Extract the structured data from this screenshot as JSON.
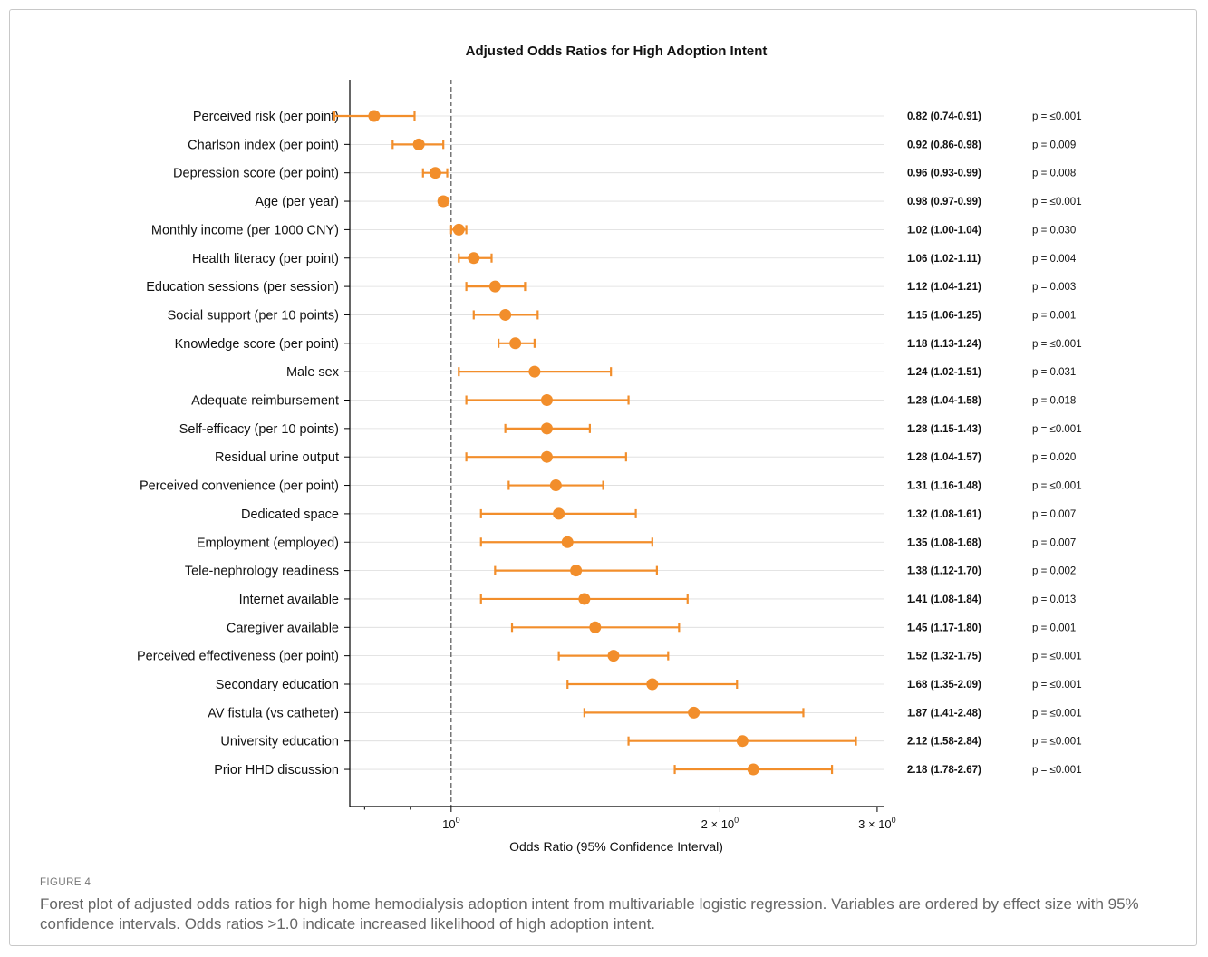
{
  "figure": {
    "label": "FIGURE 4",
    "caption": "Forest plot of adjusted odds ratios for high home hemodialysis adoption intent from multivariable logistic regression. Variables are ordered by effect size with 95% confidence intervals. Odds ratios >1.0 indicate increased likelihood of high adoption intent."
  },
  "chart_data": {
    "type": "scatter",
    "subtype": "forest-plot",
    "title": "Adjusted Odds Ratios for High Adoption Intent",
    "xlabel": "Odds Ratio (95% Confidence Interval)",
    "ylabel": "",
    "x_scale": "log",
    "xlim": [
      0.77,
      3.05
    ],
    "x_ticks": [
      {
        "value": 1,
        "base": "10",
        "exp": "0",
        "prefix": ""
      },
      {
        "value": 2,
        "base": "10",
        "exp": "0",
        "prefix": "2 × "
      },
      {
        "value": 3,
        "base": "10",
        "exp": "0",
        "prefix": "3 × "
      }
    ],
    "reference_line": 1,
    "grid": "horizontal",
    "color": "#F28E2B",
    "rows": [
      {
        "label": "Perceived risk (per point)",
        "or": 0.82,
        "lo": 0.74,
        "hi": 0.91,
        "text": "0.82 (0.74-0.91)",
        "p": "p = ≤0.001"
      },
      {
        "label": "Charlson index (per point)",
        "or": 0.92,
        "lo": 0.86,
        "hi": 0.98,
        "text": "0.92 (0.86-0.98)",
        "p": "p = 0.009"
      },
      {
        "label": "Depression score (per point)",
        "or": 0.96,
        "lo": 0.93,
        "hi": 0.99,
        "text": "0.96 (0.93-0.99)",
        "p": "p = 0.008"
      },
      {
        "label": "Age (per year)",
        "or": 0.98,
        "lo": 0.97,
        "hi": 0.99,
        "text": "0.98 (0.97-0.99)",
        "p": "p = ≤0.001"
      },
      {
        "label": "Monthly income (per 1000 CNY)",
        "or": 1.02,
        "lo": 1.0,
        "hi": 1.04,
        "text": "1.02 (1.00-1.04)",
        "p": "p = 0.030"
      },
      {
        "label": "Health literacy (per point)",
        "or": 1.06,
        "lo": 1.02,
        "hi": 1.11,
        "text": "1.06 (1.02-1.11)",
        "p": "p = 0.004"
      },
      {
        "label": "Education sessions (per session)",
        "or": 1.12,
        "lo": 1.04,
        "hi": 1.21,
        "text": "1.12 (1.04-1.21)",
        "p": "p = 0.003"
      },
      {
        "label": "Social support (per 10 points)",
        "or": 1.15,
        "lo": 1.06,
        "hi": 1.25,
        "text": "1.15 (1.06-1.25)",
        "p": "p = 0.001"
      },
      {
        "label": "Knowledge score (per point)",
        "or": 1.18,
        "lo": 1.13,
        "hi": 1.24,
        "text": "1.18 (1.13-1.24)",
        "p": "p = ≤0.001"
      },
      {
        "label": "Male sex",
        "or": 1.24,
        "lo": 1.02,
        "hi": 1.51,
        "text": "1.24 (1.02-1.51)",
        "p": "p = 0.031"
      },
      {
        "label": "Adequate reimbursement",
        "or": 1.28,
        "lo": 1.04,
        "hi": 1.58,
        "text": "1.28 (1.04-1.58)",
        "p": "p = 0.018"
      },
      {
        "label": "Self-efficacy (per 10 points)",
        "or": 1.28,
        "lo": 1.15,
        "hi": 1.43,
        "text": "1.28 (1.15-1.43)",
        "p": "p = ≤0.001"
      },
      {
        "label": "Residual urine output",
        "or": 1.28,
        "lo": 1.04,
        "hi": 1.57,
        "text": "1.28 (1.04-1.57)",
        "p": "p = 0.020"
      },
      {
        "label": "Perceived convenience (per point)",
        "or": 1.31,
        "lo": 1.16,
        "hi": 1.48,
        "text": "1.31 (1.16-1.48)",
        "p": "p = ≤0.001"
      },
      {
        "label": "Dedicated space",
        "or": 1.32,
        "lo": 1.08,
        "hi": 1.61,
        "text": "1.32 (1.08-1.61)",
        "p": "p = 0.007"
      },
      {
        "label": "Employment (employed)",
        "or": 1.35,
        "lo": 1.08,
        "hi": 1.68,
        "text": "1.35 (1.08-1.68)",
        "p": "p = 0.007"
      },
      {
        "label": "Tele-nephrology readiness",
        "or": 1.38,
        "lo": 1.12,
        "hi": 1.7,
        "text": "1.38 (1.12-1.70)",
        "p": "p = 0.002"
      },
      {
        "label": "Internet available",
        "or": 1.41,
        "lo": 1.08,
        "hi": 1.84,
        "text": "1.41 (1.08-1.84)",
        "p": "p = 0.013"
      },
      {
        "label": "Caregiver available",
        "or": 1.45,
        "lo": 1.17,
        "hi": 1.8,
        "text": "1.45 (1.17-1.80)",
        "p": "p = 0.001"
      },
      {
        "label": "Perceived effectiveness (per point)",
        "or": 1.52,
        "lo": 1.32,
        "hi": 1.75,
        "text": "1.52 (1.32-1.75)",
        "p": "p = ≤0.001"
      },
      {
        "label": "Secondary education",
        "or": 1.68,
        "lo": 1.35,
        "hi": 2.09,
        "text": "1.68 (1.35-2.09)",
        "p": "p = ≤0.001"
      },
      {
        "label": "AV fistula (vs catheter)",
        "or": 1.87,
        "lo": 1.41,
        "hi": 2.48,
        "text": "1.87 (1.41-2.48)",
        "p": "p = ≤0.001"
      },
      {
        "label": "University education",
        "or": 2.12,
        "lo": 1.58,
        "hi": 2.84,
        "text": "2.12 (1.58-2.84)",
        "p": "p = ≤0.001"
      },
      {
        "label": "Prior HHD discussion",
        "or": 2.18,
        "lo": 1.78,
        "hi": 2.67,
        "text": "2.18 (1.78-2.67)",
        "p": "p = ≤0.001"
      }
    ]
  }
}
